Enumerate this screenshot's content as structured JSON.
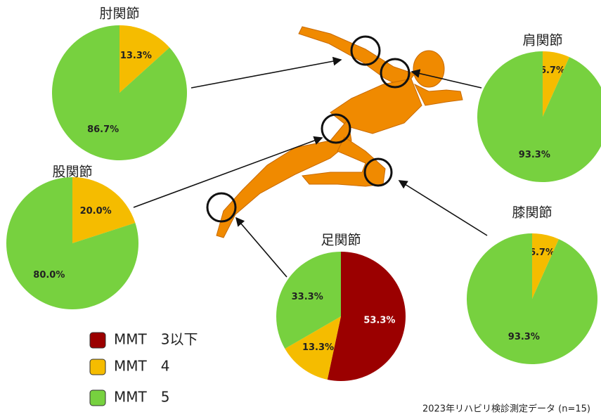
{
  "chart_data": [
    {
      "type": "pie",
      "title": "肘関節",
      "categories": [
        "MMT　4",
        "MMT　5"
      ],
      "values": [
        13.3,
        86.7
      ],
      "value_labels": [
        "13.3%",
        "86.7%"
      ],
      "colors": [
        "#f5bc00",
        "#77d13f"
      ]
    },
    {
      "type": "pie",
      "title": "肩関節",
      "categories": [
        "MMT　4",
        "MMT　5"
      ],
      "values": [
        6.7,
        93.3
      ],
      "value_labels": [
        "6.7%",
        "93.3%"
      ],
      "colors": [
        "#f5bc00",
        "#77d13f"
      ]
    },
    {
      "type": "pie",
      "title": "股関節",
      "categories": [
        "MMT　4",
        "MMT　5"
      ],
      "values": [
        20.0,
        80.0
      ],
      "value_labels": [
        "20.0%",
        "80.0%"
      ],
      "colors": [
        "#f5bc00",
        "#77d13f"
      ]
    },
    {
      "type": "pie",
      "title": "膝関節",
      "categories": [
        "MMT　4",
        "MMT　5"
      ],
      "values": [
        6.7,
        93.3
      ],
      "value_labels": [
        "6.7%",
        "93.3%"
      ],
      "colors": [
        "#f5bc00",
        "#77d13f"
      ]
    },
    {
      "type": "pie",
      "title": "足関節",
      "categories": [
        "MMT　3以下",
        "MMT　4",
        "MMT　5"
      ],
      "values": [
        53.3,
        13.3,
        33.3
      ],
      "value_labels": [
        "53.3%",
        "13.3%",
        "33.3%"
      ],
      "colors": [
        "#9b0000",
        "#f5bc00",
        "#77d13f"
      ]
    }
  ],
  "legend": [
    {
      "name": "MMT　3以下",
      "color": "#9b0000"
    },
    {
      "name": "MMT　4",
      "color": "#f5bc00"
    },
    {
      "name": "MMT　5",
      "color": "#77d13f"
    }
  ],
  "footnote": "2023年リハビリ検診測定データ (n=15)"
}
